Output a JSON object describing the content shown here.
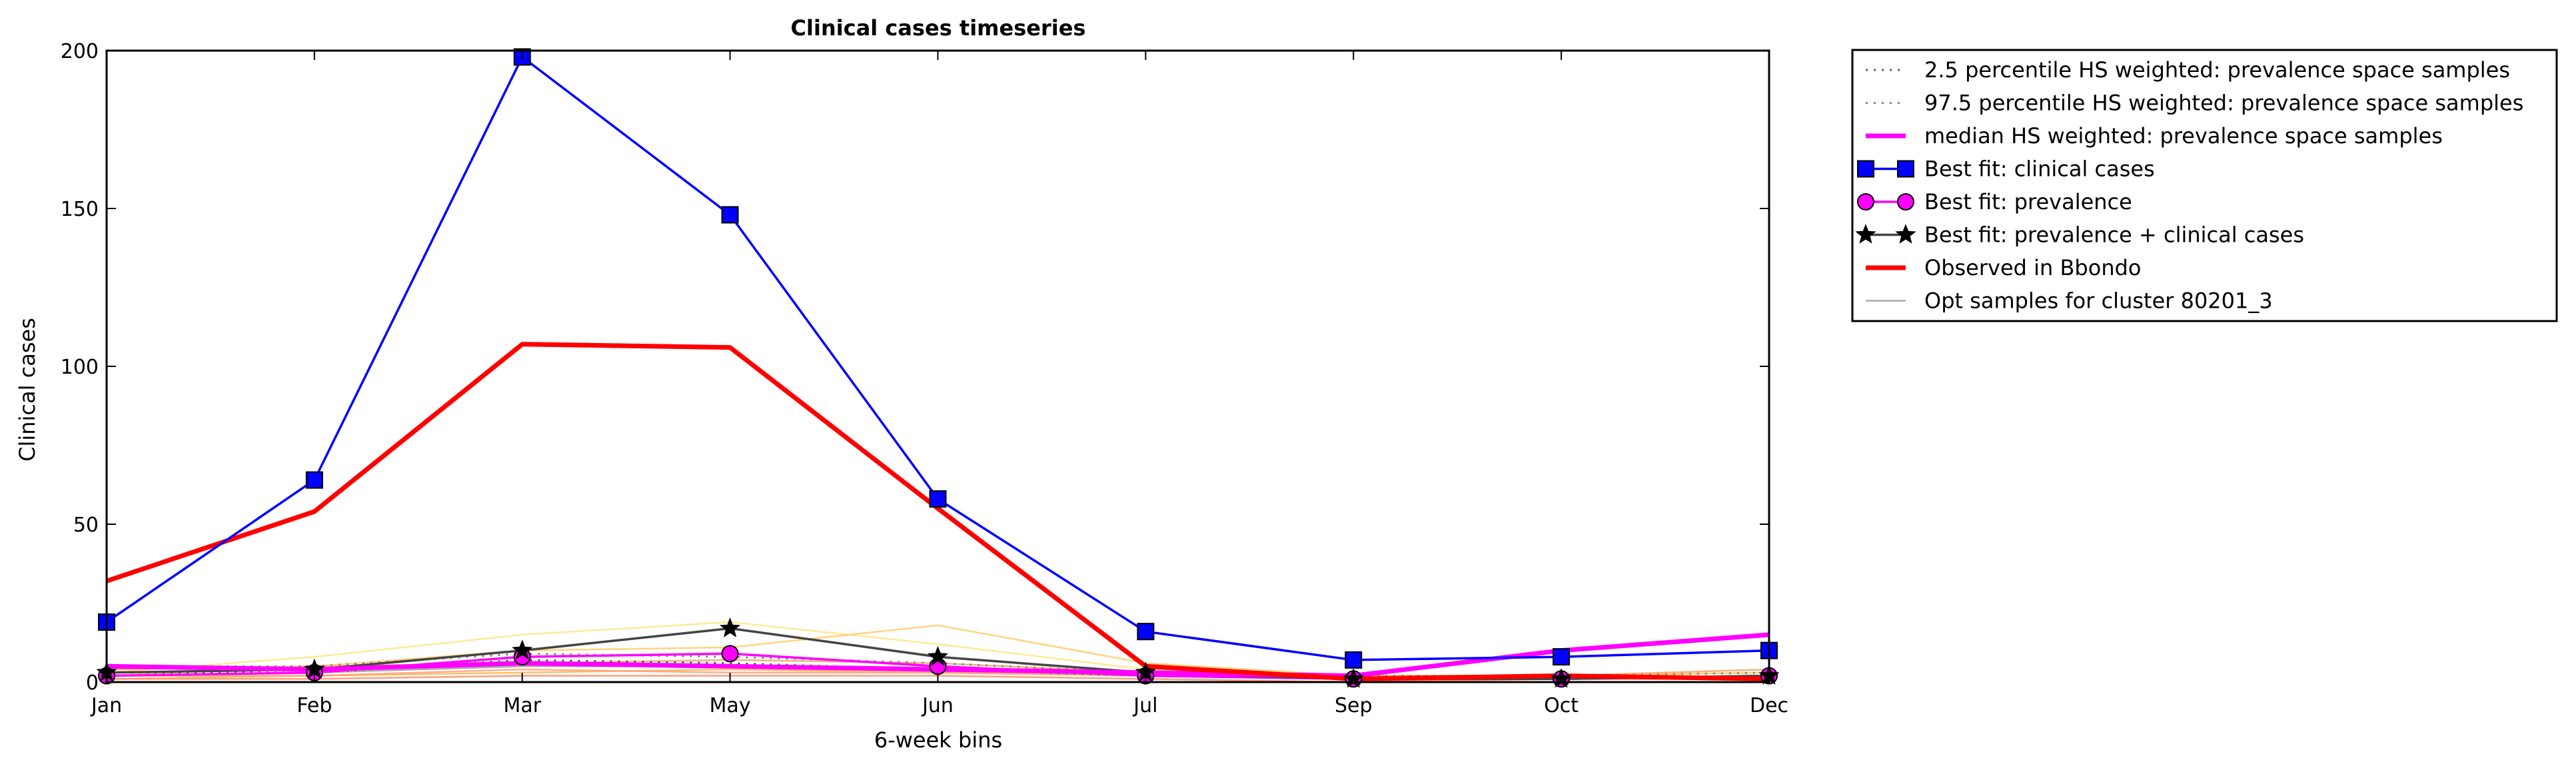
{
  "chart_data": {
    "type": "line",
    "title": "Clinical cases timeseries",
    "xlabel": "6-week bins",
    "ylabel": "Clinical cases",
    "categories": [
      "Jan",
      "Feb",
      "Mar",
      "May",
      "Jun",
      "Jul",
      "Sep",
      "Oct",
      "Dec"
    ],
    "ylim": [
      0,
      200
    ],
    "yticks": [
      "0",
      "50",
      "100",
      "150",
      "200"
    ],
    "grid": false,
    "legend_position": "outside-right",
    "series": [
      {
        "name": "2.5 percentile HS weighted: prevalence space samples",
        "style": "dotted",
        "color": "#555555",
        "values": [
          3,
          3,
          7,
          6,
          4,
          2,
          1,
          1,
          2
        ]
      },
      {
        "name": "97.5 percentile HS weighted: prevalence space samples",
        "style": "dotted",
        "color": "#888888",
        "values": [
          5,
          5,
          9,
          8,
          6,
          3,
          2,
          2,
          3
        ]
      },
      {
        "name": "median HS weighted: prevalence space samples",
        "style": "solid",
        "color": "#ff00ff",
        "values": [
          5,
          4,
          6,
          5,
          4,
          3,
          2,
          10,
          15
        ]
      },
      {
        "name": "Best fit: clinical cases",
        "style": "solid",
        "marker": "square",
        "color": "#0000ff",
        "values": [
          19,
          64,
          198,
          148,
          58,
          16,
          7,
          8,
          10
        ]
      },
      {
        "name": "Best fit: prevalence",
        "style": "solid",
        "marker": "circle",
        "color": "#ff00ff",
        "values": [
          2,
          3,
          8,
          9,
          5,
          2,
          1,
          1,
          2
        ]
      },
      {
        "name": "Best fit: prevalence + clinical cases",
        "style": "solid",
        "marker": "star",
        "color": "#444444",
        "values": [
          3,
          4,
          10,
          17,
          8,
          3,
          1,
          1,
          2
        ]
      },
      {
        "name": "Observed in Bbondo",
        "style": "solid",
        "color": "#ff0000",
        "values": [
          32,
          54,
          107,
          106,
          55,
          5,
          1,
          2,
          1
        ]
      },
      {
        "name": "Opt samples for cluster 80201_3",
        "style": "solid",
        "color": "#aaaaaa",
        "values": [
          2,
          3,
          5,
          5,
          4,
          2,
          1,
          1,
          2
        ]
      }
    ],
    "background_samples": [
      {
        "color": "#ffe680",
        "values": [
          3,
          8,
          15,
          19,
          12,
          4,
          2,
          2,
          3
        ]
      },
      {
        "color": "#ffcc66",
        "values": [
          2,
          5,
          10,
          11,
          18,
          6,
          2,
          2,
          3
        ]
      },
      {
        "color": "#ffb347",
        "values": [
          1,
          2,
          3,
          4,
          3,
          2,
          1,
          1,
          2
        ]
      },
      {
        "color": "#f4a460",
        "values": [
          4,
          5,
          6,
          7,
          6,
          3,
          2,
          2,
          4
        ]
      },
      {
        "color": "#ff8c69",
        "values": [
          1,
          1,
          2,
          2,
          2,
          1,
          0,
          1,
          1
        ]
      },
      {
        "color": "#ffa07a",
        "values": [
          2,
          2,
          4,
          3,
          3,
          2,
          1,
          1,
          2
        ]
      }
    ]
  }
}
